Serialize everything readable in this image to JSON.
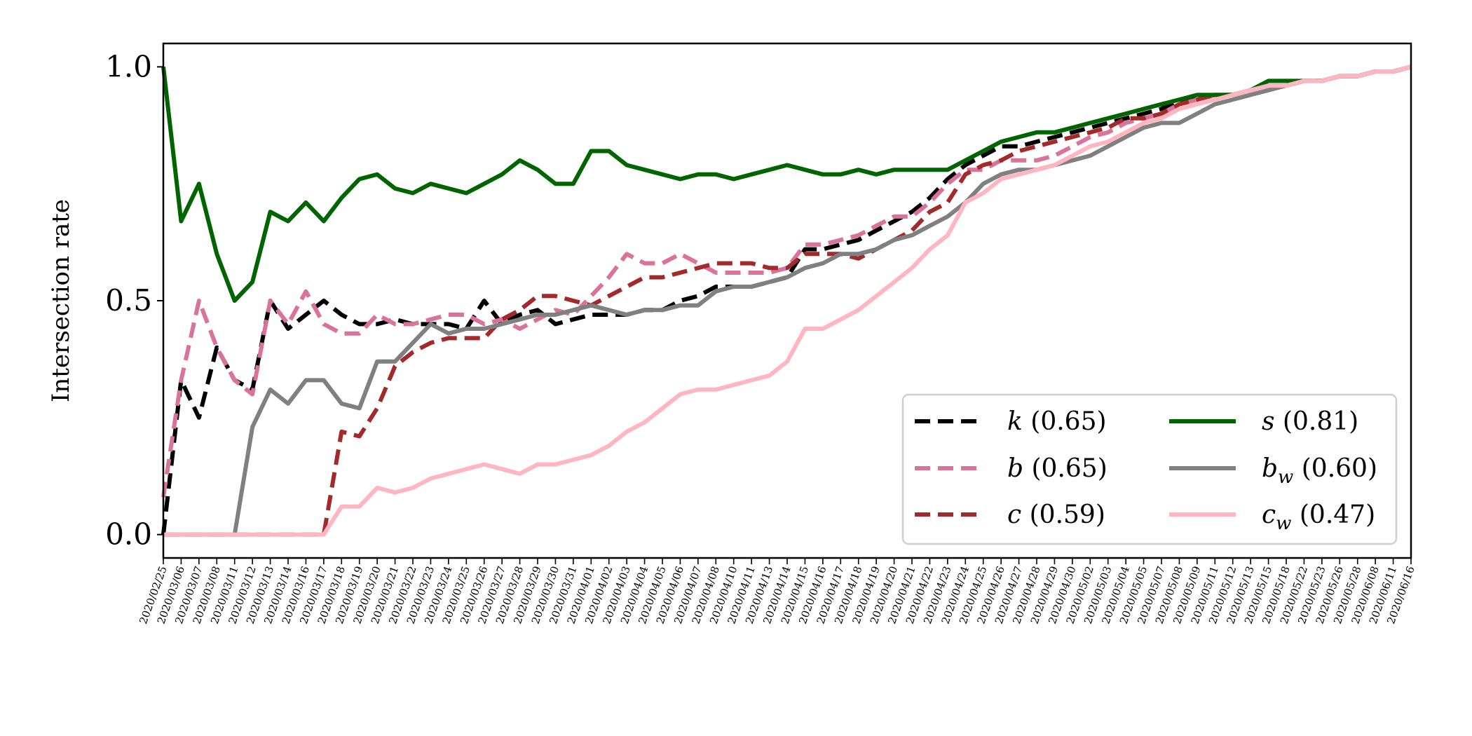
{
  "chart_data": {
    "type": "line",
    "ylabel": "Intersection rate",
    "xlabel": "",
    "ylim": [
      -0.05,
      1.05
    ],
    "yticks": [
      0.0,
      0.5,
      1.0
    ],
    "ytick_labels": [
      "0.0",
      "0.5",
      "1.0"
    ],
    "grid": false,
    "legend_position": "lower-right",
    "legend_columns": 2,
    "x_tick_labels": [
      "2020/02/25",
      "2020/03/06",
      "2020/03/07",
      "2020/03/08",
      "2020/03/11",
      "2020/03/12",
      "2020/03/13",
      "2020/03/14",
      "2020/03/16",
      "2020/03/17",
      "2020/03/18",
      "2020/03/19",
      "2020/03/20",
      "2020/03/21",
      "2020/03/22",
      "2020/03/23",
      "2020/03/24",
      "2020/03/25",
      "2020/03/26",
      "2020/03/27",
      "2020/03/28",
      "2020/03/29",
      "2020/03/30",
      "2020/03/31",
      "2020/04/01",
      "2020/04/02",
      "2020/04/03",
      "2020/04/04",
      "2020/04/05",
      "2020/04/06",
      "2020/04/07",
      "2020/04/08",
      "2020/04/10",
      "2020/04/11",
      "2020/04/13",
      "2020/04/14",
      "2020/04/15",
      "2020/04/16",
      "2020/04/17",
      "2020/04/18",
      "2020/04/19",
      "2020/04/20",
      "2020/04/21",
      "2020/04/22",
      "2020/04/23",
      "2020/04/24",
      "2020/04/25",
      "2020/04/26",
      "2020/04/27",
      "2020/04/28",
      "2020/04/29",
      "2020/04/30",
      "2020/05/02",
      "2020/05/03",
      "2020/05/04",
      "2020/05/05",
      "2020/05/07",
      "2020/05/08",
      "2020/05/09",
      "2020/05/11",
      "2020/05/12",
      "2020/05/13",
      "2020/05/15",
      "2020/05/18",
      "2020/05/22",
      "2020/05/23",
      "2020/05/26",
      "2020/05/28",
      "2020/06/08",
      "2020/06/11",
      "2020/06/16"
    ],
    "series": [
      {
        "name": "k (0.65)",
        "var": "k",
        "sub": "",
        "score": "(0.65)",
        "color": "#000000",
        "dashed": true,
        "values": [
          0.0,
          0.33,
          0.25,
          0.4,
          0.33,
          0.31,
          0.5,
          0.44,
          0.47,
          0.5,
          0.47,
          0.45,
          0.45,
          0.46,
          0.45,
          0.45,
          0.45,
          0.44,
          0.5,
          0.45,
          0.47,
          0.48,
          0.45,
          0.46,
          0.47,
          0.47,
          0.47,
          0.48,
          0.48,
          0.5,
          0.51,
          0.53,
          0.53,
          0.53,
          0.54,
          0.55,
          0.61,
          0.61,
          0.62,
          0.63,
          0.65,
          0.67,
          0.69,
          0.72,
          0.76,
          0.79,
          0.81,
          0.83,
          0.83,
          0.84,
          0.85,
          0.86,
          0.87,
          0.88,
          0.89,
          0.9,
          0.91,
          0.93,
          0.93,
          0.94,
          0.94,
          0.95,
          0.96,
          0.96,
          0.97,
          0.97,
          0.98,
          0.98,
          0.99,
          0.99,
          1.0
        ]
      },
      {
        "name": "b (0.65)",
        "var": "b",
        "sub": "",
        "score": "(0.65)",
        "color": "#d9739a",
        "dashed": true,
        "values": [
          0.08,
          0.33,
          0.5,
          0.4,
          0.33,
          0.3,
          0.5,
          0.45,
          0.52,
          0.45,
          0.43,
          0.43,
          0.47,
          0.45,
          0.45,
          0.46,
          0.47,
          0.47,
          0.45,
          0.46,
          0.44,
          0.46,
          0.48,
          0.47,
          0.51,
          0.55,
          0.6,
          0.58,
          0.58,
          0.6,
          0.58,
          0.56,
          0.56,
          0.56,
          0.56,
          0.57,
          0.62,
          0.62,
          0.63,
          0.64,
          0.66,
          0.68,
          0.68,
          0.71,
          0.75,
          0.78,
          0.78,
          0.8,
          0.8,
          0.8,
          0.81,
          0.83,
          0.85,
          0.86,
          0.88,
          0.89,
          0.9,
          0.92,
          0.93,
          0.94,
          0.94,
          0.95,
          0.96,
          0.96,
          0.97,
          0.97,
          0.98,
          0.98,
          0.99,
          0.99,
          1.0
        ]
      },
      {
        "name": "c (0.59)",
        "var": "c",
        "sub": "",
        "score": "(0.59)",
        "color": "#a32a2a",
        "dashed": true,
        "values": [
          0.0,
          0.0,
          0.0,
          0.0,
          0.0,
          0.0,
          0.0,
          0.0,
          0.0,
          0.0,
          0.22,
          0.21,
          0.27,
          0.36,
          0.39,
          0.41,
          0.42,
          0.42,
          0.42,
          0.46,
          0.48,
          0.51,
          0.51,
          0.5,
          0.49,
          0.51,
          0.53,
          0.55,
          0.55,
          0.56,
          0.57,
          0.58,
          0.58,
          0.58,
          0.57,
          0.57,
          0.6,
          0.6,
          0.6,
          0.59,
          0.61,
          0.63,
          0.65,
          0.69,
          0.71,
          0.77,
          0.79,
          0.8,
          0.82,
          0.83,
          0.84,
          0.85,
          0.86,
          0.87,
          0.89,
          0.89,
          0.9,
          0.92,
          0.93,
          0.94,
          0.94,
          0.95,
          0.96,
          0.96,
          0.97,
          0.97,
          0.98,
          0.98,
          0.99,
          0.99,
          1.0
        ]
      },
      {
        "name": "s (0.81)",
        "var": "s",
        "sub": "",
        "score": "(0.81)",
        "color": "#006400",
        "dashed": false,
        "values": [
          1.0,
          0.67,
          0.75,
          0.6,
          0.5,
          0.54,
          0.69,
          0.67,
          0.71,
          0.67,
          0.72,
          0.76,
          0.77,
          0.74,
          0.73,
          0.75,
          0.74,
          0.73,
          0.75,
          0.77,
          0.8,
          0.78,
          0.75,
          0.75,
          0.82,
          0.82,
          0.79,
          0.78,
          0.77,
          0.76,
          0.77,
          0.77,
          0.76,
          0.77,
          0.78,
          0.79,
          0.78,
          0.77,
          0.77,
          0.78,
          0.77,
          0.78,
          0.78,
          0.78,
          0.78,
          0.8,
          0.82,
          0.84,
          0.85,
          0.86,
          0.86,
          0.87,
          0.88,
          0.89,
          0.9,
          0.91,
          0.92,
          0.93,
          0.94,
          0.94,
          0.94,
          0.95,
          0.97,
          0.97,
          0.97,
          0.97,
          0.98,
          0.98,
          0.99,
          0.99,
          1.0
        ]
      },
      {
        "name": "b_w (0.60)",
        "var": "b",
        "sub": "w",
        "score": "(0.60)",
        "color": "#808080",
        "dashed": false,
        "values": [
          0.0,
          0.0,
          0.0,
          0.0,
          0.0,
          0.23,
          0.31,
          0.28,
          0.33,
          0.33,
          0.28,
          0.27,
          0.37,
          0.37,
          0.41,
          0.45,
          0.43,
          0.44,
          0.44,
          0.45,
          0.46,
          0.47,
          0.47,
          0.48,
          0.49,
          0.48,
          0.47,
          0.48,
          0.48,
          0.49,
          0.49,
          0.52,
          0.53,
          0.53,
          0.54,
          0.55,
          0.57,
          0.58,
          0.6,
          0.6,
          0.61,
          0.63,
          0.64,
          0.66,
          0.68,
          0.71,
          0.75,
          0.77,
          0.78,
          0.78,
          0.79,
          0.8,
          0.81,
          0.83,
          0.85,
          0.87,
          0.88,
          0.88,
          0.9,
          0.92,
          0.93,
          0.94,
          0.95,
          0.96,
          0.97,
          0.97,
          0.98,
          0.98,
          0.99,
          0.99,
          1.0
        ]
      },
      {
        "name": "c_w (0.47)",
        "var": "c",
        "sub": "w",
        "score": "(0.47)",
        "color": "#ffb6c1",
        "dashed": false,
        "values": [
          0.0,
          0.0,
          0.0,
          0.0,
          0.0,
          0.0,
          0.0,
          0.0,
          0.0,
          0.0,
          0.06,
          0.06,
          0.1,
          0.09,
          0.1,
          0.12,
          0.13,
          0.14,
          0.15,
          0.14,
          0.13,
          0.15,
          0.15,
          0.16,
          0.17,
          0.19,
          0.22,
          0.24,
          0.27,
          0.3,
          0.31,
          0.31,
          0.32,
          0.33,
          0.34,
          0.37,
          0.44,
          0.44,
          0.46,
          0.48,
          0.51,
          0.54,
          0.57,
          0.61,
          0.64,
          0.71,
          0.73,
          0.76,
          0.77,
          0.78,
          0.79,
          0.81,
          0.83,
          0.84,
          0.86,
          0.88,
          0.89,
          0.91,
          0.92,
          0.93,
          0.94,
          0.95,
          0.96,
          0.96,
          0.97,
          0.97,
          0.98,
          0.98,
          0.99,
          0.99,
          1.0
        ]
      }
    ]
  }
}
